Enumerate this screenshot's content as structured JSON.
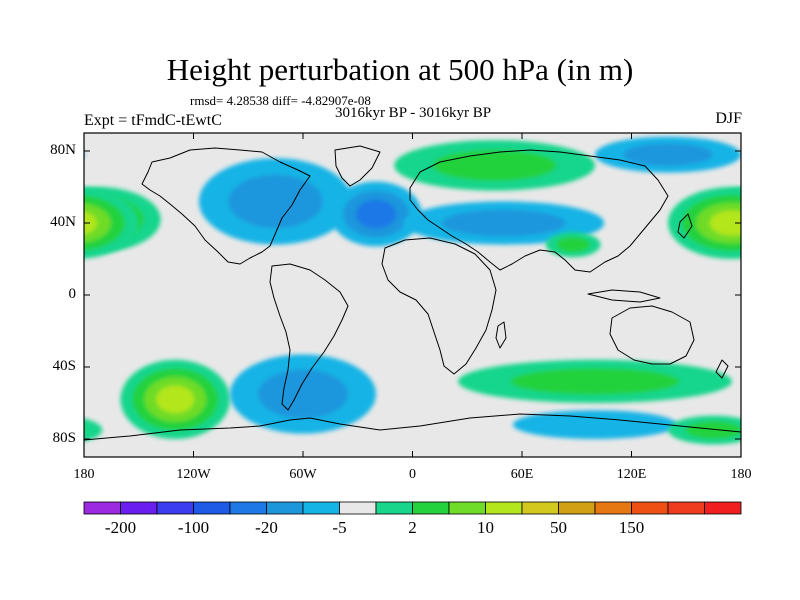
{
  "title": "Height perturbation at 500 hPa (in m)",
  "stats": "rmsd= 4.28538 diff= -4.82907e-08",
  "period": "3016kyr BP - 3016kyr BP",
  "experiment": "Expt = tFmdC-tEwtC",
  "season": "DJF",
  "map": {
    "projection": "cylindrical equidistant",
    "lon_range": [
      -180,
      180
    ],
    "lat_range": [
      -90,
      90
    ],
    "lat_ticks": [
      {
        "value": 80,
        "label": "80N"
      },
      {
        "value": 40,
        "label": "40N"
      },
      {
        "value": 0,
        "label": "0"
      },
      {
        "value": -40,
        "label": "40S"
      },
      {
        "value": -80,
        "label": "80S"
      }
    ],
    "lon_ticks": [
      {
        "value": -180,
        "label": "180"
      },
      {
        "value": -120,
        "label": "120W"
      },
      {
        "value": -60,
        "label": "60W"
      },
      {
        "value": 0,
        "label": "0"
      },
      {
        "value": 60,
        "label": "60E"
      },
      {
        "value": 120,
        "label": "120E"
      },
      {
        "value": 180,
        "label": "180"
      }
    ],
    "background_color": "#e8e8e8"
  },
  "colorbar": {
    "colors": [
      "#9b2ae0",
      "#6a1ef0",
      "#3c3cf0",
      "#1e5ae6",
      "#1e78e6",
      "#1e96dc",
      "#14b4e6",
      "#e8e8e8",
      "#19d58c",
      "#23d23c",
      "#6edc28",
      "#b4e61e",
      "#d2c81e",
      "#d2a014",
      "#e67814",
      "#ee5014",
      "#f03c1e",
      "#f01e1e"
    ],
    "labels": [
      "-200",
      "-100",
      "-20",
      "-5",
      "2",
      "10",
      "50",
      "150"
    ]
  },
  "anomalies": [
    {
      "lon": -172,
      "lat": 42,
      "rx": 34,
      "ry": 18,
      "colors": [
        "#19d58c",
        "#23d23c",
        "#6edc28"
      ]
    },
    {
      "lon": -130,
      "lat": -58,
      "rx": 30,
      "ry": 22,
      "colors": [
        "#19d58c",
        "#23d23c",
        "#6edc28",
        "#b4e61e"
      ]
    },
    {
      "lon": -75,
      "lat": 52,
      "rx": 42,
      "ry": 24,
      "colors": [
        "#14b4e6",
        "#1e96dc"
      ]
    },
    {
      "lon": -60,
      "lat": -55,
      "rx": 40,
      "ry": 22,
      "colors": [
        "#14b4e6",
        "#1e96dc"
      ]
    },
    {
      "lon": -20,
      "lat": 45,
      "rx": 25,
      "ry": 18,
      "colors": [
        "#14b4e6",
        "#1e96dc",
        "#1e78e6"
      ]
    },
    {
      "lon": 45,
      "lat": 72,
      "rx": 55,
      "ry": 14,
      "colors": [
        "#19d58c",
        "#23d23c"
      ]
    },
    {
      "lon": 50,
      "lat": 40,
      "rx": 55,
      "ry": 12,
      "colors": [
        "#14b4e6",
        "#1e96dc"
      ]
    },
    {
      "lon": 88,
      "lat": 28,
      "rx": 15,
      "ry": 7,
      "colors": [
        "#19d58c",
        "#23d23c"
      ]
    },
    {
      "lon": 100,
      "lat": -48,
      "rx": 75,
      "ry": 12,
      "colors": [
        "#19d58c",
        "#23d23c"
      ]
    },
    {
      "lon": 100,
      "lat": -72,
      "rx": 45,
      "ry": 8,
      "colors": [
        "#14b4e6"
      ]
    },
    {
      "lon": 140,
      "lat": 78,
      "rx": 40,
      "ry": 10,
      "colors": [
        "#14b4e6",
        "#1e96dc"
      ]
    },
    {
      "lon": 175,
      "lat": 40,
      "rx": 35,
      "ry": 20,
      "colors": [
        "#19d58c",
        "#23d23c",
        "#6edc28",
        "#b4e61e"
      ]
    },
    {
      "lon": 165,
      "lat": -75,
      "rx": 25,
      "ry": 8,
      "colors": [
        "#19d58c",
        "#23d23c"
      ]
    }
  ]
}
